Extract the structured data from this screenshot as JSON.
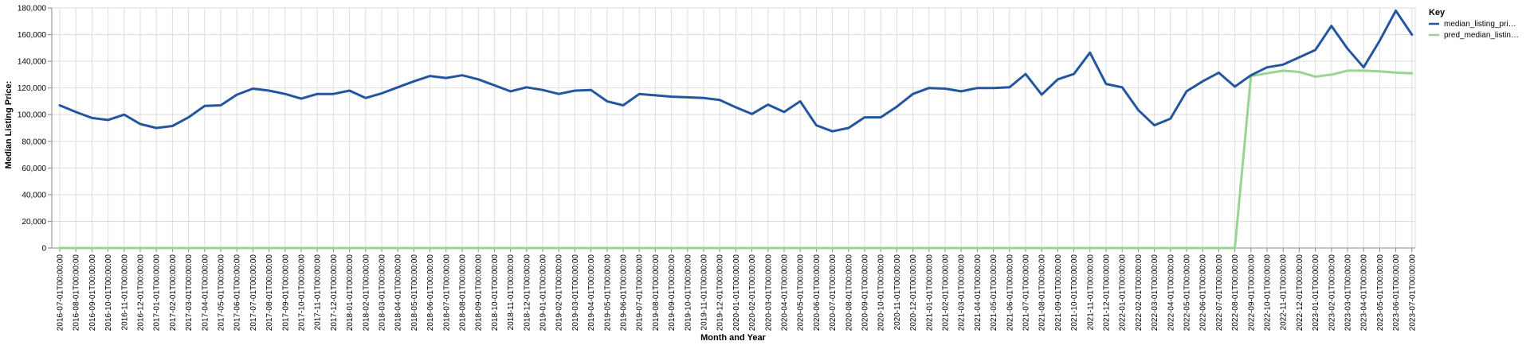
{
  "chart_data": {
    "type": "line",
    "xlabel": "Month and Year",
    "ylabel": "Median Listing Price:",
    "ylim": [
      0,
      180000
    ],
    "y_ticks": [
      "0",
      "20,000",
      "40,000",
      "60,000",
      "80,000",
      "100,000",
      "120,000",
      "140,000",
      "160,000",
      "180,000"
    ],
    "grid": true,
    "legend": {
      "title": "Key",
      "placement": "right",
      "entries": [
        "median_listing_pri…",
        "pred_median_listin…"
      ]
    },
    "categories": [
      "2016-07-01T00:00:00",
      "2016-08-01T00:00:00",
      "2016-09-01T00:00:00",
      "2016-10-01T00:00:00",
      "2016-11-01T00:00:00",
      "2016-12-01T00:00:00",
      "2017-01-01T00:00:00",
      "2017-02-01T00:00:00",
      "2017-03-01T00:00:00",
      "2017-04-01T00:00:00",
      "2017-05-01T00:00:00",
      "2017-06-01T00:00:00",
      "2017-07-01T00:00:00",
      "2017-08-01T00:00:00",
      "2017-09-01T00:00:00",
      "2017-10-01T00:00:00",
      "2017-11-01T00:00:00",
      "2017-12-01T00:00:00",
      "2018-01-01T00:00:00",
      "2018-02-01T00:00:00",
      "2018-03-01T00:00:00",
      "2018-04-01T00:00:00",
      "2018-05-01T00:00:00",
      "2018-06-01T00:00:00",
      "2018-07-01T00:00:00",
      "2018-08-01T00:00:00",
      "2018-09-01T00:00:00",
      "2018-10-01T00:00:00",
      "2018-11-01T00:00:00",
      "2018-12-01T00:00:00",
      "2019-01-01T00:00:00",
      "2019-02-01T00:00:00",
      "2019-03-01T00:00:00",
      "2019-04-01T00:00:00",
      "2019-05-01T00:00:00",
      "2019-06-01T00:00:00",
      "2019-07-01T00:00:00",
      "2019-08-01T00:00:00",
      "2019-09-01T00:00:00",
      "2019-10-01T00:00:00",
      "2019-11-01T00:00:00",
      "2019-12-01T00:00:00",
      "2020-01-01T00:00:00",
      "2020-02-01T00:00:00",
      "2020-03-01T00:00:00",
      "2020-04-01T00:00:00",
      "2020-05-01T00:00:00",
      "2020-06-01T00:00:00",
      "2020-07-01T00:00:00",
      "2020-08-01T00:00:00",
      "2020-09-01T00:00:00",
      "2020-10-01T00:00:00",
      "2020-11-01T00:00:00",
      "2020-12-01T00:00:00",
      "2021-01-01T00:00:00",
      "2021-02-01T00:00:00",
      "2021-03-01T00:00:00",
      "2021-04-01T00:00:00",
      "2021-05-01T00:00:00",
      "2021-06-01T00:00:00",
      "2021-07-01T00:00:00",
      "2021-08-01T00:00:00",
      "2021-09-01T00:00:00",
      "2021-10-01T00:00:00",
      "2021-11-01T00:00:00",
      "2021-12-01T00:00:00",
      "2022-01-01T00:00:00",
      "2022-02-01T00:00:00",
      "2022-03-01T00:00:00",
      "2022-04-01T00:00:00",
      "2022-05-01T00:00:00",
      "2022-06-01T00:00:00",
      "2022-07-01T00:00:00",
      "2022-08-01T00:00:00",
      "2022-09-01T00:00:00",
      "2022-10-01T00:00:00",
      "2022-11-01T00:00:00",
      "2022-12-01T00:00:00",
      "2023-01-01T00:00:00",
      "2023-02-01T00:00:00",
      "2023-03-01T00:00:00",
      "2023-04-01T00:00:00",
      "2023-05-01T00:00:00",
      "2023-06-01T00:00:00",
      "2023-07-01T00:00:00"
    ],
    "series": [
      {
        "name": "median_listing_pri…",
        "color": "#2456a0",
        "values": [
          107000,
          102000,
          97500,
          96000,
          100000,
          93000,
          90000,
          91500,
          98000,
          106500,
          107000,
          115000,
          119500,
          118000,
          115500,
          112000,
          115500,
          115500,
          118000,
          112500,
          116000,
          120500,
          125000,
          129000,
          127500,
          129500,
          126500,
          122000,
          117500,
          120500,
          118500,
          115500,
          118000,
          118500,
          110000,
          107000,
          115500,
          114500,
          113500,
          113000,
          112500,
          111000,
          105500,
          100500,
          107500,
          102000,
          110000,
          92000,
          87500,
          90000,
          98000,
          98000,
          106000,
          115500,
          120000,
          119500,
          117500,
          120000,
          120000,
          120500,
          130500,
          115000,
          126500,
          130500,
          146500,
          123000,
          120500,
          103500,
          92000,
          97000,
          117500,
          125000,
          131500,
          121000,
          129500,
          135500,
          137500,
          143000,
          148500,
          166500,
          149500,
          135500,
          155500,
          178000,
          160000
        ]
      },
      {
        "name": "pred_median_listin…",
        "color": "#98d594",
        "values": [
          0,
          0,
          0,
          0,
          0,
          0,
          0,
          0,
          0,
          0,
          0,
          0,
          0,
          0,
          0,
          0,
          0,
          0,
          0,
          0,
          0,
          0,
          0,
          0,
          0,
          0,
          0,
          0,
          0,
          0,
          0,
          0,
          0,
          0,
          0,
          0,
          0,
          0,
          0,
          0,
          0,
          0,
          0,
          0,
          0,
          0,
          0,
          0,
          0,
          0,
          0,
          0,
          0,
          0,
          0,
          0,
          0,
          0,
          0,
          0,
          0,
          0,
          0,
          0,
          0,
          0,
          0,
          0,
          0,
          0,
          0,
          0,
          0,
          0,
          129000,
          131000,
          133000,
          132000,
          128500,
          130000,
          133000,
          133000,
          132500,
          131500,
          131000
        ]
      }
    ]
  }
}
